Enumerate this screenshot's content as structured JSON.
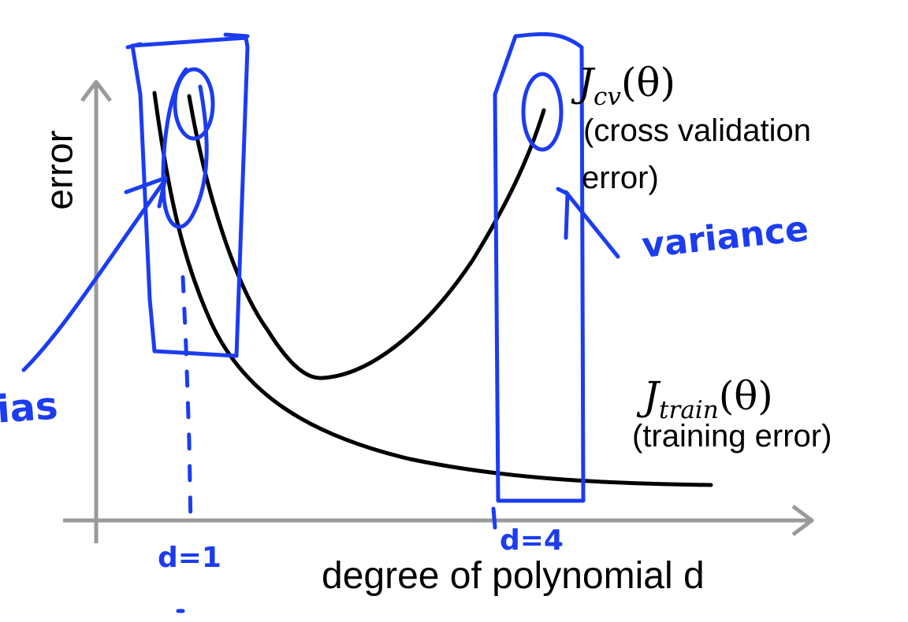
{
  "axes": {
    "y_label": "error",
    "x_label": "degree of polynomial d"
  },
  "curves": {
    "cv": {
      "symbol": "J",
      "subscript": "cv",
      "argument": "(θ)",
      "caption_line1": "(cross validation",
      "caption_line2": "error)"
    },
    "train": {
      "symbol": "J",
      "subscript": "train",
      "argument": "(θ)",
      "caption": "(training error)"
    }
  },
  "annotations": {
    "bias": "ias",
    "variance": "variance",
    "d1": "d=1",
    "d4": "d=4"
  },
  "colors": {
    "ink": "#1c3cf0",
    "axis": "#999999",
    "curve": "#000000"
  }
}
